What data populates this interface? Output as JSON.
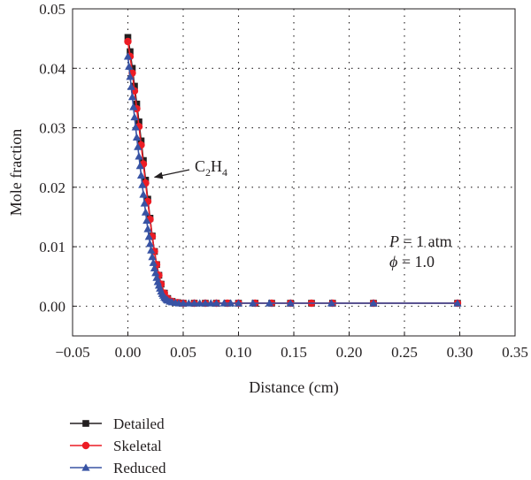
{
  "chart_data": {
    "type": "line",
    "xlabel": "Distance (cm)",
    "ylabel": "Mole fraction",
    "xlim": [
      -0.05,
      0.35
    ],
    "ylim": [
      -0.005,
      0.05
    ],
    "x_ticks": [
      "−0.05",
      "0.00",
      "0.05",
      "0.10",
      "0.15",
      "0.20",
      "0.25",
      "0.30",
      "0.35"
    ],
    "y_ticks": [
      "0.00",
      "0.01",
      "0.02",
      "0.03",
      "0.04",
      "0.05"
    ],
    "grid": true,
    "legend_position": "bottom-left",
    "annotations": {
      "species": {
        "main": "C",
        "sub1": "2",
        "mid": "H",
        "sub2": "4",
        "arrow_to": [
          0.021,
          0.0217
        ]
      },
      "pressure": {
        "symbol": "P",
        "text": " = 1 atm"
      },
      "equivalence": {
        "symbol": "ϕ",
        "text": " = 1.0"
      }
    },
    "series": [
      {
        "name": "Detailed",
        "color": "#231f20",
        "marker": "square",
        "x": [
          0.0,
          0.002,
          0.004,
          0.006,
          0.008,
          0.01,
          0.012,
          0.014,
          0.016,
          0.018,
          0.02,
          0.022,
          0.024,
          0.026,
          0.028,
          0.03,
          0.033,
          0.036,
          0.04,
          0.045,
          0.05,
          0.06,
          0.07,
          0.08,
          0.09,
          0.1,
          0.115,
          0.13,
          0.147,
          0.166,
          0.185,
          0.222,
          0.298
        ],
        "y": [
          0.0452,
          0.0428,
          0.04,
          0.037,
          0.034,
          0.031,
          0.0278,
          0.0245,
          0.0212,
          0.018,
          0.0148,
          0.0118,
          0.0092,
          0.007,
          0.0052,
          0.0037,
          0.0022,
          0.0013,
          0.0008,
          0.0006,
          0.0005,
          0.0005,
          0.0005,
          0.0005,
          0.0005,
          0.0005,
          0.0005,
          0.0005,
          0.0005,
          0.0005,
          0.0005,
          0.0005,
          0.0005
        ]
      },
      {
        "name": "Skeletal",
        "color": "#ec1c24",
        "marker": "circle",
        "x": [
          0.0,
          0.002,
          0.004,
          0.006,
          0.008,
          0.01,
          0.012,
          0.014,
          0.016,
          0.018,
          0.02,
          0.022,
          0.024,
          0.026,
          0.028,
          0.03,
          0.033,
          0.036,
          0.04,
          0.045,
          0.05,
          0.06,
          0.07,
          0.08,
          0.09,
          0.1,
          0.115,
          0.13,
          0.147,
          0.166,
          0.185,
          0.222,
          0.298
        ],
        "y": [
          0.0445,
          0.042,
          0.0392,
          0.0362,
          0.0332,
          0.0302,
          0.0271,
          0.0239,
          0.0207,
          0.0176,
          0.0146,
          0.0117,
          0.0092,
          0.007,
          0.0052,
          0.0037,
          0.0022,
          0.0013,
          0.0008,
          0.0006,
          0.0005,
          0.0005,
          0.0005,
          0.0005,
          0.0005,
          0.0005,
          0.0005,
          0.0005,
          0.0005,
          0.0005,
          0.0005,
          0.0005,
          0.0005
        ]
      },
      {
        "name": "Reduced",
        "color": "#3853a4",
        "marker": "triangle",
        "x": [
          0.0,
          0.001,
          0.002,
          0.003,
          0.004,
          0.005,
          0.006,
          0.007,
          0.008,
          0.009,
          0.01,
          0.011,
          0.012,
          0.013,
          0.014,
          0.015,
          0.016,
          0.017,
          0.018,
          0.019,
          0.02,
          0.021,
          0.022,
          0.023,
          0.024,
          0.025,
          0.026,
          0.027,
          0.028,
          0.029,
          0.03,
          0.031,
          0.032,
          0.033,
          0.034,
          0.035,
          0.036,
          0.038,
          0.04,
          0.043,
          0.046,
          0.05,
          0.055,
          0.06,
          0.065,
          0.07,
          0.075,
          0.08,
          0.087,
          0.093,
          0.1,
          0.113,
          0.128,
          0.147,
          0.184,
          0.222,
          0.298
        ],
        "y": [
          0.042,
          0.0403,
          0.0386,
          0.0369,
          0.0352,
          0.0335,
          0.0318,
          0.0301,
          0.0284,
          0.0268,
          0.0252,
          0.0236,
          0.022,
          0.0204,
          0.0188,
          0.0173,
          0.0158,
          0.0144,
          0.013,
          0.0117,
          0.0105,
          0.0094,
          0.0083,
          0.0073,
          0.0064,
          0.0056,
          0.0048,
          0.0041,
          0.0035,
          0.003,
          0.0025,
          0.0021,
          0.0018,
          0.0015,
          0.0013,
          0.0011,
          0.001,
          0.0008,
          0.0007,
          0.0006,
          0.0005,
          0.0005,
          0.0005,
          0.0005,
          0.0005,
          0.0005,
          0.0005,
          0.0005,
          0.0005,
          0.0005,
          0.0005,
          0.0005,
          0.0005,
          0.0005,
          0.0005,
          0.0005,
          0.0005
        ]
      }
    ]
  }
}
